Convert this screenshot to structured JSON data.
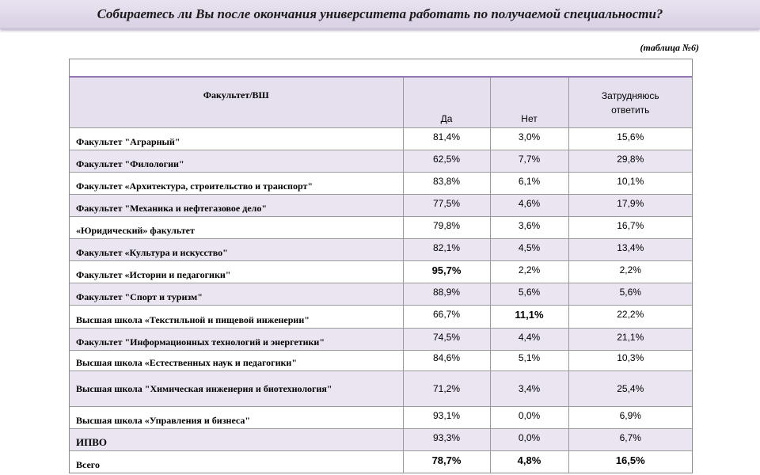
{
  "header": {
    "title": "Собираетесь ли Вы после окончания университета работать по получаемой специальности?"
  },
  "table_note": "(таблица №6)",
  "table": {
    "headers": {
      "faculty": "Факультет/ВШ",
      "yes": "Да",
      "no": "Нет",
      "unsure_line1": "Затрудняюсь",
      "unsure_line2": "ответить"
    },
    "rows": [
      {
        "name": "Факультет \"Аграрный\"",
        "yes": "81,4%",
        "no": "3,0%",
        "unsure": "15,6%"
      },
      {
        "name": "Факультет \"Филологии\"",
        "yes": "62,5%",
        "no": "7,7%",
        "unsure": "29,8%"
      },
      {
        "name": "Факультет   «Архитектура, строительство и транспорт\"",
        "yes": "83,8%",
        "no": "6,1%",
        "unsure": "10,1%"
      },
      {
        "name": "Факультет   \"Механика и нефтегазовое дело\"",
        "yes": "77,5%",
        "no": "4,6%",
        "unsure": "17,9%"
      },
      {
        "name": "«Юридический»   факультет",
        "yes": "79,8%",
        "no": "3,6%",
        "unsure": "16,7%"
      },
      {
        "name": "Факультет  «Культура и искусство\"",
        "yes": "82,1%",
        "no": "4,5%",
        "unsure": "13,4%"
      },
      {
        "name": "Факультет  «Истории и педагогики\"",
        "yes": "95,7%",
        "no": "2,2%",
        "unsure": "2,2%"
      },
      {
        "name": "Факультет \"Спорт и туризм\"",
        "yes": "88,9%",
        "no": "5,6%",
        "unsure": "5,6%"
      },
      {
        "name": "Высшая школа «Текстильной и пищевой инженерии\"",
        "yes": "66,7%",
        "no": "11,1%",
        "unsure": "22,2%"
      },
      {
        "name": "Факультет   \"Информационных технологий и энергетики\"",
        "yes": "74,5%",
        "no": "4,4%",
        "unsure": "21,1%"
      },
      {
        "name": "Высшая школа «Естественных наук и педагогики\"",
        "yes": "84,6%",
        "no": "5,1%",
        "unsure": "10,3%"
      },
      {
        "name": "Высшая школа  \"Химическая  инженерия  и биотехнология\"",
        "yes": "71,2%",
        "no": "3,4%",
        "unsure": "25,4%"
      },
      {
        "name": "Высшая школа  «Управления и бизнеса\"",
        "yes": "93,1%",
        "no": "0,0%",
        "unsure": "6,9%"
      },
      {
        "name": "ИПВО",
        "yes": "93,3%",
        "no": "0,0%",
        "unsure": "6,7%"
      },
      {
        "name": "Всего",
        "yes": "78,7%",
        "no": "4,8%",
        "unsure": "16,5%"
      }
    ]
  }
}
